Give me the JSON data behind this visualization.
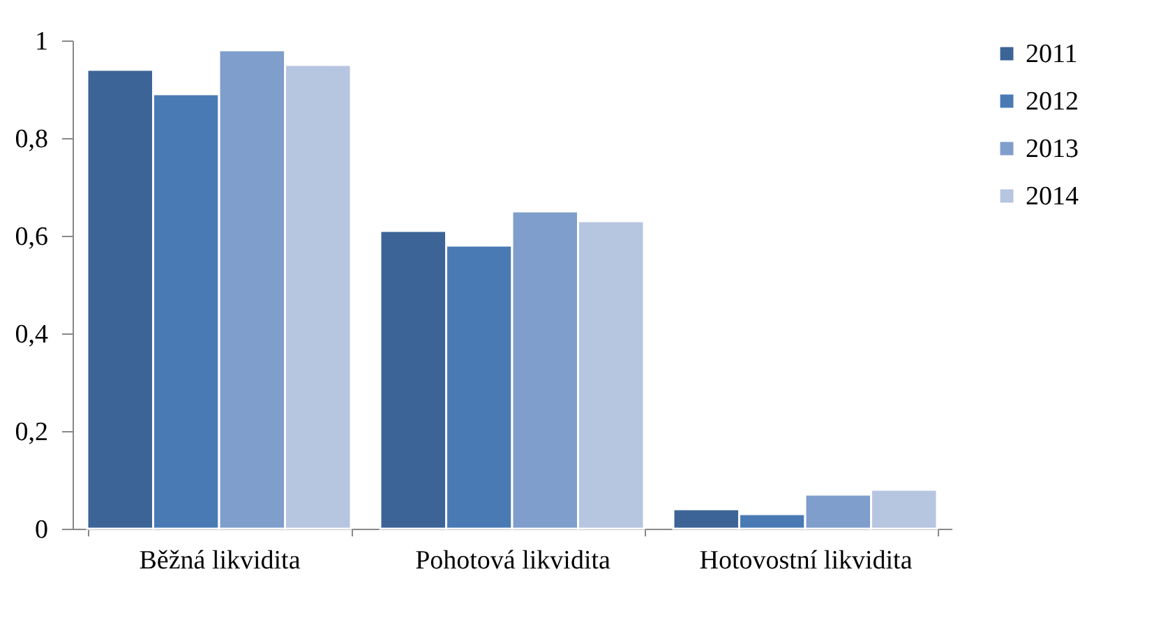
{
  "chart_data": {
    "type": "bar",
    "categories": [
      "Běžná likvidita",
      "Pohotová likvidita",
      "Hotovostní likvidita"
    ],
    "series": [
      {
        "name": "2011",
        "color": "#3c6496",
        "values": [
          0.94,
          0.61,
          0.04
        ]
      },
      {
        "name": "2012",
        "color": "#4a7ab4",
        "values": [
          0.89,
          0.58,
          0.03
        ]
      },
      {
        "name": "2013",
        "color": "#7f9ecb",
        "values": [
          0.98,
          0.65,
          0.07
        ]
      },
      {
        "name": "2014",
        "color": "#b6c5e0",
        "values": [
          0.95,
          0.63,
          0.08
        ]
      }
    ],
    "ylim": [
      0,
      1
    ],
    "yticks": [
      0,
      {
        "value": 0.2,
        "label": "0,2"
      },
      {
        "value": 0.4,
        "label": "0,4"
      },
      {
        "value": 0.6,
        "label": "0,6"
      },
      {
        "value": 0.8,
        "label": "0,8"
      },
      1
    ],
    "grid": false,
    "legend": "right"
  }
}
